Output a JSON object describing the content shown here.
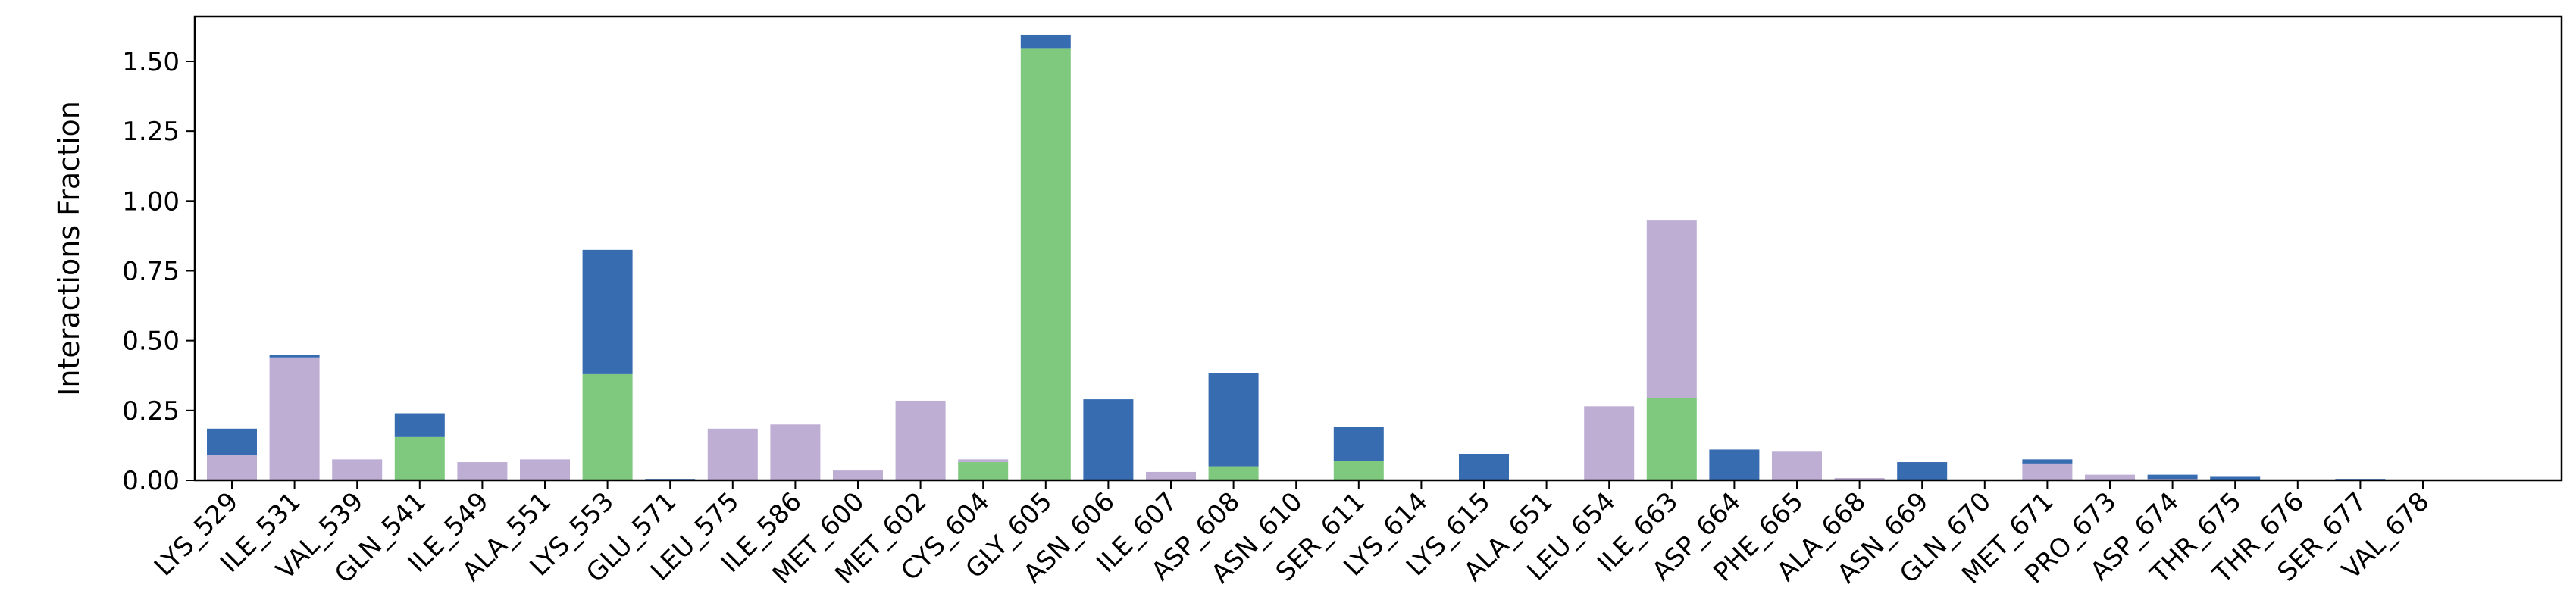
{
  "chart_data": {
    "type": "bar",
    "stacked": true,
    "title": "",
    "xlabel": "",
    "ylabel": "Interactions Fraction",
    "ylim": [
      0,
      1.66
    ],
    "yticks": [
      0.0,
      0.25,
      0.5,
      0.75,
      1.0,
      1.25,
      1.5
    ],
    "ytick_labels": [
      "0.00",
      "0.25",
      "0.50",
      "0.75",
      "1.00",
      "1.25",
      "1.50"
    ],
    "grid": false,
    "legend": "none",
    "categories": [
      "LYS_529",
      "ILE_531",
      "VAL_539",
      "GLN_541",
      "ILE_549",
      "ALA_551",
      "LYS_553",
      "GLU_571",
      "LEU_575",
      "ILE_586",
      "MET_600",
      "MET_602",
      "CYS_604",
      "GLY_605",
      "ASN_606",
      "ILE_607",
      "ASP_608",
      "ASN_610",
      "SER_611",
      "LYS_614",
      "LYS_615",
      "ALA_651",
      "LEU_654",
      "ILE_663",
      "ASP_664",
      "PHE_665",
      "ALA_668",
      "ASN_669",
      "GLN_670",
      "MET_671",
      "PRO_673",
      "ASP_674",
      "THR_675",
      "THR_676",
      "SER_677",
      "VAL_678"
    ],
    "series": [
      {
        "color": "#7fc97f",
        "values": [
          0,
          0,
          0,
          0.155,
          0,
          0,
          0.38,
          0,
          0,
          0,
          0,
          0,
          0.065,
          1.545,
          0,
          0,
          0.05,
          0,
          0.07,
          0,
          0,
          0,
          0,
          0.295,
          0,
          0,
          0,
          0,
          0,
          0,
          0,
          0,
          0,
          0,
          0,
          0
        ]
      },
      {
        "color": "#beaed4",
        "values": [
          0.09,
          0.44,
          0.075,
          0,
          0.065,
          0.075,
          0,
          0,
          0.185,
          0.2,
          0.035,
          0.285,
          0.01,
          0,
          0,
          0.03,
          0,
          0,
          0,
          0,
          0,
          0,
          0.265,
          0.635,
          0,
          0.105,
          0.008,
          0,
          0,
          0.06,
          0.02,
          0.005,
          0,
          0,
          0,
          0
        ]
      },
      {
        "color": "#386cb0",
        "values": [
          0.095,
          0.008,
          0,
          0.085,
          0,
          0,
          0.445,
          0.005,
          0,
          0,
          0,
          0,
          0,
          0.05,
          0.29,
          0,
          0.335,
          0,
          0.12,
          0,
          0.095,
          0,
          0,
          0,
          0.11,
          0,
          0,
          0.065,
          0,
          0.015,
          0,
          0.015,
          0.015,
          0,
          0.005,
          0
        ]
      }
    ]
  }
}
